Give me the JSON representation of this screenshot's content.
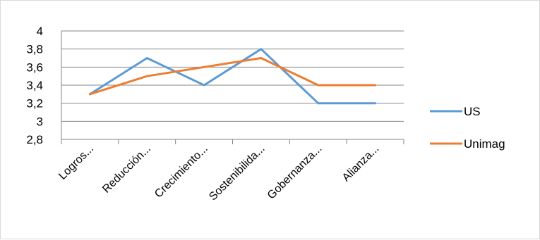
{
  "chart_data": {
    "type": "line",
    "title": "",
    "xlabel": "",
    "ylabel": "",
    "categories": [
      "Logros...",
      "Reducción...",
      "Crecimiento...",
      "Sostenibilida...",
      "Gobernanza...",
      "Alianza..."
    ],
    "ylim": [
      2.8,
      4
    ],
    "yticks": [
      "4",
      "3,8",
      "3,6",
      "3,4",
      "3,2",
      "3",
      "2,8"
    ],
    "grid": true,
    "legend_position": "right",
    "series": [
      {
        "name": "US",
        "color": "#5b9bd5",
        "values": [
          3.3,
          3.7,
          3.4,
          3.8,
          3.2,
          3.2
        ]
      },
      {
        "name": "Unimag",
        "color": "#ed7d31",
        "values": [
          3.3,
          3.5,
          3.6,
          3.7,
          3.4,
          3.4
        ]
      }
    ]
  }
}
